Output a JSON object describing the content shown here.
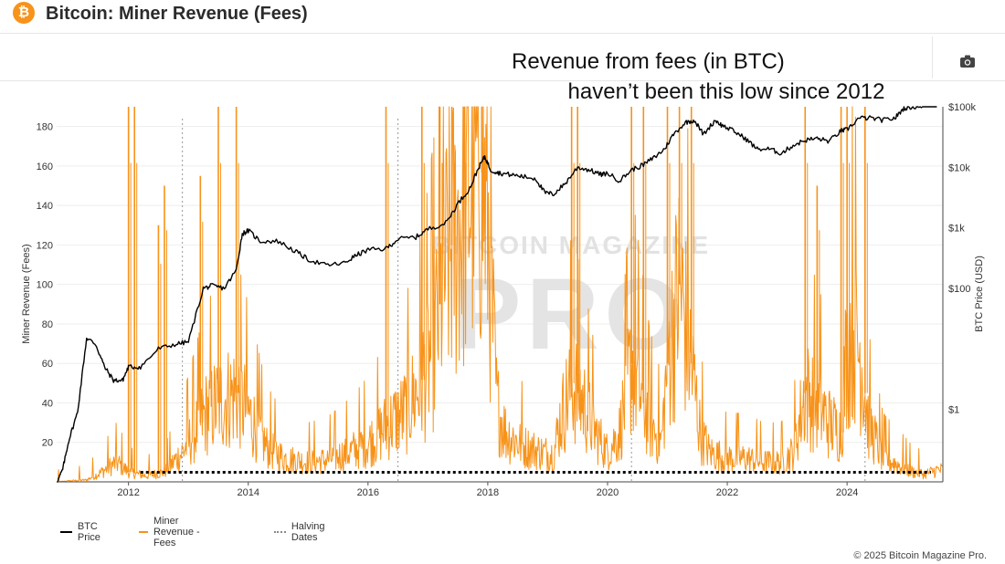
{
  "header": {
    "logo_glyph": "₿",
    "title": "Bitcoin: Miner Revenue (Fees)"
  },
  "toolbar": {
    "camera_icon": "camera-icon"
  },
  "annotation": {
    "line1": "Revenue from fees (in BTC)",
    "line2": "haven’t been this low since 2012"
  },
  "watermark": {
    "line1": "BITCOIN MAGAZINE",
    "line2": "PRO"
  },
  "footer": {
    "copyright": "© 2025 Bitcoin Magazine Pro."
  },
  "colors": {
    "btc_price": "#000000",
    "fees": "#f7931a",
    "halving": "#999999",
    "floor_marker": "#000000"
  },
  "chart_data": {
    "type": "line",
    "title": "Bitcoin: Miner Revenue (Fees)",
    "ylabel": "Miner Revenue (Fees)",
    "y2label": "BTC Price (USD)",
    "xlim": [
      2010.8,
      2025.6
    ],
    "ylim": [
      0,
      190
    ],
    "x_ticks": [
      2012,
      2014,
      2016,
      2018,
      2020,
      2022,
      2024
    ],
    "x_tick_labels": [
      "2012",
      "2014",
      "2016",
      "2018",
      "2020",
      "2022",
      "2024"
    ],
    "y_ticks": [
      20,
      40,
      60,
      80,
      100,
      120,
      140,
      160,
      180
    ],
    "y2_scale": "log",
    "y2_ticks": [
      1,
      100,
      1000,
      10000,
      100000
    ],
    "y2_tick_labels": [
      "$1",
      "$100",
      "$1k",
      "$10k",
      "$100k"
    ],
    "y2_range_log10": [
      -1.2,
      5.0
    ],
    "halving_dates": [
      2012.9,
      2016.5,
      2020.4,
      2024.3
    ],
    "floor_line": {
      "y": 3,
      "x_start": 2012.2,
      "x_end": 2025.4
    },
    "legend": [
      "BTC Price",
      "Miner Revenue - Fees",
      "Halving Dates"
    ],
    "series": [
      {
        "name": "BTC Price",
        "axis": "y2",
        "x": [
          2010.8,
          2010.9,
          2011.0,
          2011.15,
          2011.3,
          2011.45,
          2011.6,
          2011.75,
          2011.9,
          2012.0,
          2012.2,
          2012.5,
          2012.8,
          2013.0,
          2013.25,
          2013.4,
          2013.6,
          2013.8,
          2013.9,
          2014.0,
          2014.2,
          2014.5,
          2014.8,
          2015.0,
          2015.3,
          2015.6,
          2015.8,
          2016.0,
          2016.3,
          2016.5,
          2016.8,
          2017.0,
          2017.3,
          2017.5,
          2017.7,
          2017.85,
          2017.95,
          2018.05,
          2018.2,
          2018.4,
          2018.6,
          2018.8,
          2018.95,
          2019.1,
          2019.3,
          2019.5,
          2019.7,
          2019.9,
          2020.0,
          2020.2,
          2020.4,
          2020.6,
          2020.8,
          2020.95,
          2021.1,
          2021.3,
          2021.45,
          2021.6,
          2021.8,
          2021.9,
          2022.1,
          2022.3,
          2022.5,
          2022.7,
          2022.9,
          2023.1,
          2023.3,
          2023.5,
          2023.7,
          2023.9,
          2024.0,
          2024.2,
          2024.4,
          2024.6,
          2024.8,
          2024.95,
          2025.1,
          2025.3,
          2025.5
        ],
        "y": [
          0.06,
          0.1,
          0.3,
          0.9,
          15,
          12,
          5,
          3,
          3,
          5,
          5,
          10,
          12,
          13,
          100,
          110,
          100,
          200,
          800,
          900,
          600,
          600,
          400,
          300,
          240,
          260,
          350,
          430,
          450,
          650,
          700,
          950,
          1200,
          2500,
          4500,
          10000,
          15000,
          9000,
          8000,
          7500,
          7000,
          6500,
          3800,
          3600,
          5500,
          10000,
          9000,
          7500,
          8000,
          6000,
          9000,
          11000,
          15000,
          20000,
          35000,
          55000,
          60000,
          35000,
          60000,
          50000,
          40000,
          30000,
          20000,
          20000,
          17000,
          23000,
          28000,
          30000,
          27000,
          40000,
          42000,
          65000,
          65000,
          60000,
          65000,
          95000,
          100000,
          105000,
          115000
        ]
      },
      {
        "name": "Miner Revenue - Fees",
        "axis": "y",
        "baseline": {
          "x": [
            2010.8,
            2011.0,
            2011.3,
            2011.5,
            2011.8,
            2012.0,
            2012.3,
            2012.6,
            2012.9,
            2013.1,
            2013.3,
            2013.5,
            2013.8,
            2014.0,
            2014.3,
            2014.6,
            2015.0,
            2015.3,
            2015.6,
            2015.9,
            2016.1,
            2016.3,
            2016.6,
            2016.8,
            2016.95,
            2017.1,
            2017.3,
            2017.5,
            2017.7,
            2017.85,
            2018.0,
            2018.15,
            2018.3,
            2018.6,
            2018.9,
            2019.1,
            2019.2,
            2019.4,
            2019.6,
            2019.8,
            2020.0,
            2020.2,
            2020.4,
            2020.6,
            2020.7,
            2020.9,
            2021.0,
            2021.2,
            2021.4,
            2021.55,
            2021.7,
            2022.0,
            2022.3,
            2022.6,
            2022.9,
            2023.1,
            2023.3,
            2023.5,
            2023.7,
            2023.9,
            2024.0,
            2024.1,
            2024.25,
            2024.35,
            2024.6,
            2024.9,
            2025.1,
            2025.3,
            2025.5
          ],
          "y": [
            0,
            0.5,
            1,
            4,
            10,
            5,
            3,
            5,
            15,
            25,
            35,
            40,
            45,
            35,
            18,
            12,
            10,
            11,
            14,
            18,
            22,
            28,
            35,
            45,
            55,
            70,
            110,
            130,
            150,
            170,
            130,
            40,
            25,
            18,
            15,
            14,
            30,
            50,
            40,
            25,
            15,
            25,
            60,
            40,
            30,
            20,
            60,
            100,
            60,
            25,
            15,
            12,
            12,
            10,
            10,
            15,
            45,
            40,
            30,
            25,
            70,
            80,
            60,
            30,
            12,
            8,
            5,
            4,
            6
          ]
        },
        "spikes": [
          {
            "x": 2012.0,
            "y": 190
          },
          {
            "x": 2012.1,
            "y": 190
          },
          {
            "x": 2012.5,
            "y": 130
          },
          {
            "x": 2012.6,
            "y": 150
          },
          {
            "x": 2013.2,
            "y": 155
          },
          {
            "x": 2013.5,
            "y": 190
          },
          {
            "x": 2013.8,
            "y": 190
          },
          {
            "x": 2016.3,
            "y": 190
          },
          {
            "x": 2016.9,
            "y": 190
          },
          {
            "x": 2017.2,
            "y": 190
          },
          {
            "x": 2017.4,
            "y": 190
          },
          {
            "x": 2017.6,
            "y": 190
          },
          {
            "x": 2017.9,
            "y": 190
          },
          {
            "x": 2019.4,
            "y": 190
          },
          {
            "x": 2019.5,
            "y": 190
          },
          {
            "x": 2020.4,
            "y": 190
          },
          {
            "x": 2020.6,
            "y": 190
          },
          {
            "x": 2021.0,
            "y": 190
          },
          {
            "x": 2021.2,
            "y": 190
          },
          {
            "x": 2021.4,
            "y": 190
          },
          {
            "x": 2023.3,
            "y": 190
          },
          {
            "x": 2023.5,
            "y": 150
          },
          {
            "x": 2023.9,
            "y": 190
          },
          {
            "x": 2024.0,
            "y": 190
          },
          {
            "x": 2024.3,
            "y": 190
          }
        ]
      }
    ]
  }
}
